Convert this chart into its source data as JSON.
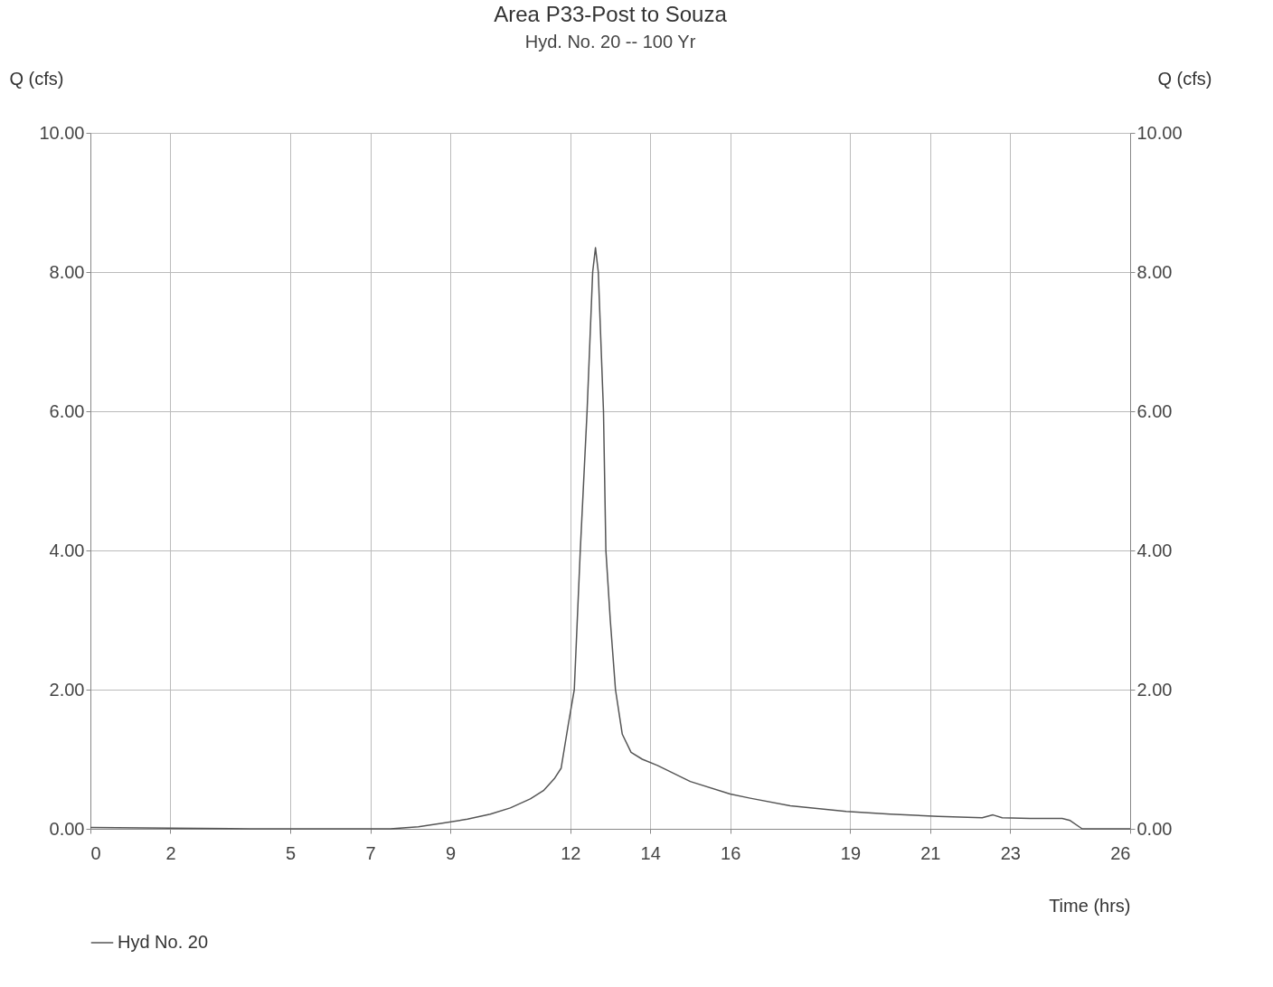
{
  "chart_data": {
    "type": "line",
    "title": "Area P33-Post to Souza",
    "subtitle": "Hyd. No. 20 -- 100 Yr",
    "xlabel": "Time (hrs)",
    "ylabel": "Q (cfs)",
    "y2label": "Q (cfs)",
    "xlim": [
      0,
      26
    ],
    "xticks": [
      0,
      2,
      5,
      7,
      9,
      12,
      14,
      16,
      19,
      21,
      23,
      26
    ],
    "ylim": [
      0,
      10
    ],
    "yticks": [
      {
        "value": 0,
        "label": "0.00"
      },
      {
        "value": 2,
        "label": "2.00"
      },
      {
        "value": 4,
        "label": "4.00"
      },
      {
        "value": 6,
        "label": "6.00"
      },
      {
        "value": 8,
        "label": "8.00"
      },
      {
        "value": 10,
        "label": "10.00"
      }
    ],
    "y2lim": [
      0,
      10
    ],
    "y2ticks": [
      {
        "value": 0,
        "label": "0.00"
      },
      {
        "value": 2,
        "label": "2.00"
      },
      {
        "value": 4,
        "label": "4.00"
      },
      {
        "value": 6,
        "label": "6.00"
      },
      {
        "value": 8,
        "label": "8.00"
      },
      {
        "value": 10,
        "label": "10.00"
      }
    ],
    "grid": true,
    "legend": "bottom left",
    "line_style": "solid",
    "marker": "none",
    "series": [
      {
        "name": "Hyd No. 20",
        "color": "#555555",
        "x": [
          0,
          2,
          4,
          6,
          7.5,
          8.2,
          8.8,
          9.43,
          10.0,
          10.5,
          11.0,
          11.33,
          11.6,
          11.77,
          11.95,
          12.1,
          12.25,
          12.42,
          12.56,
          12.63,
          12.7,
          12.83,
          12.89,
          13.0,
          13.13,
          13.3,
          13.52,
          13.8,
          14.18,
          15.0,
          16.0,
          16.5,
          17.5,
          18.9,
          20.0,
          21.2,
          22.3,
          22.57,
          22.8,
          23.5,
          24.3,
          24.5,
          24.8,
          25.0,
          26.0
        ],
        "values": [
          0.02,
          0.01,
          0.0,
          0.0,
          0.0,
          0.03,
          0.08,
          0.14,
          0.21,
          0.3,
          0.43,
          0.55,
          0.72,
          0.87,
          1.5,
          2.0,
          4.0,
          6.0,
          8.0,
          8.35,
          8.0,
          6.0,
          4.0,
          3.0,
          2.0,
          1.36,
          1.1,
          1.0,
          0.91,
          0.68,
          0.5,
          0.44,
          0.33,
          0.25,
          0.21,
          0.18,
          0.16,
          0.2,
          0.16,
          0.15,
          0.15,
          0.12,
          0.0,
          0.0,
          0.0
        ]
      }
    ]
  }
}
